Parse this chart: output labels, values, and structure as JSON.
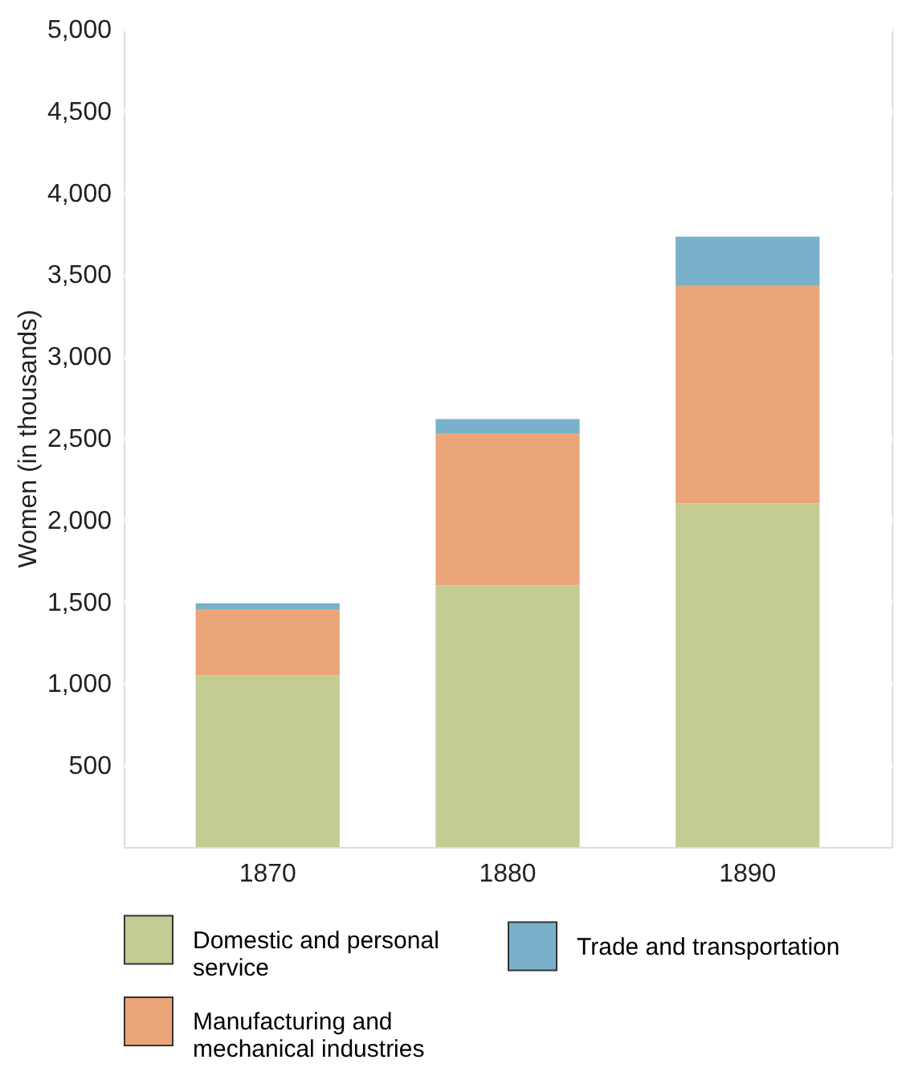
{
  "chart_data": {
    "type": "bar",
    "stacked": true,
    "ylabel": "Women (in thousands)",
    "categories": [
      "1870",
      "1880",
      "1890"
    ],
    "series": [
      {
        "name": "Domestic and personal service",
        "color": "#c5cc93",
        "values": [
          1050,
          1600,
          2100
        ]
      },
      {
        "name": "Manufacturing and mechanical industries",
        "color": "#eba579",
        "values": [
          400,
          930,
          1330
        ]
      },
      {
        "name": "Trade and transportation",
        "color": "#79b1cb",
        "values": [
          40,
          85,
          300
        ]
      }
    ],
    "ylim": [
      0,
      5000
    ],
    "yticks": [
      {
        "value": 500,
        "label": "500"
      },
      {
        "value": 1000,
        "label": "1,000"
      },
      {
        "value": 1500,
        "label": "1,500"
      },
      {
        "value": 2000,
        "label": "2,000"
      },
      {
        "value": 2500,
        "label": "2,500"
      },
      {
        "value": 3000,
        "label": "3,000"
      },
      {
        "value": 3500,
        "label": "3,500"
      },
      {
        "value": 4000,
        "label": "4,000"
      },
      {
        "value": 4500,
        "label": "4,500"
      },
      {
        "value": 5000,
        "label": "5,000"
      }
    ],
    "grid": "y",
    "legend": "bottom"
  }
}
